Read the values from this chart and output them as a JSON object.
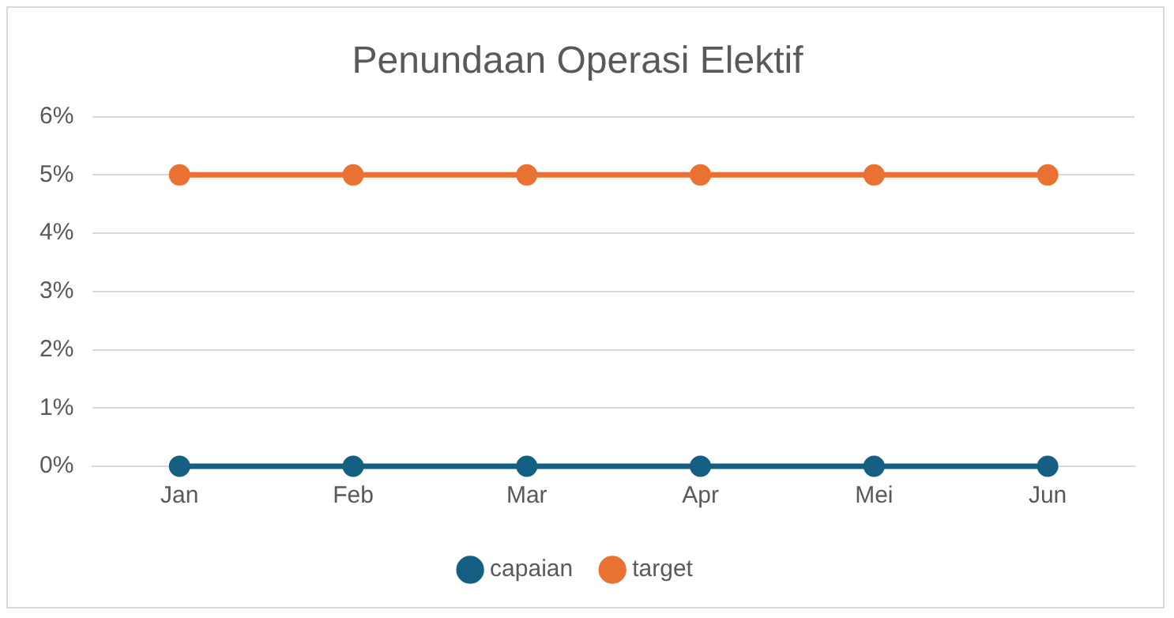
{
  "chart_data": {
    "type": "line",
    "title": "Penundaan Operasi Elektif",
    "categories": [
      "Jan",
      "Feb",
      "Mar",
      "Apr",
      "Mei",
      "Jun"
    ],
    "series": [
      {
        "name": "capaian",
        "color": "#156082",
        "values": [
          0,
          0,
          0,
          0,
          0,
          0
        ]
      },
      {
        "name": "target",
        "color": "#e97132",
        "values": [
          5,
          5,
          5,
          5,
          5,
          5
        ]
      }
    ],
    "ylim": [
      0,
      6
    ],
    "yticks": [
      {
        "value": 0,
        "label": "0%"
      },
      {
        "value": 1,
        "label": "1%"
      },
      {
        "value": 2,
        "label": "2%"
      },
      {
        "value": 3,
        "label": "3%"
      },
      {
        "value": 4,
        "label": "4%"
      },
      {
        "value": 5,
        "label": "5%"
      },
      {
        "value": 6,
        "label": "6%"
      }
    ],
    "grid": "y",
    "legend": "bottom",
    "marker": "circle",
    "line_style": "solid"
  }
}
